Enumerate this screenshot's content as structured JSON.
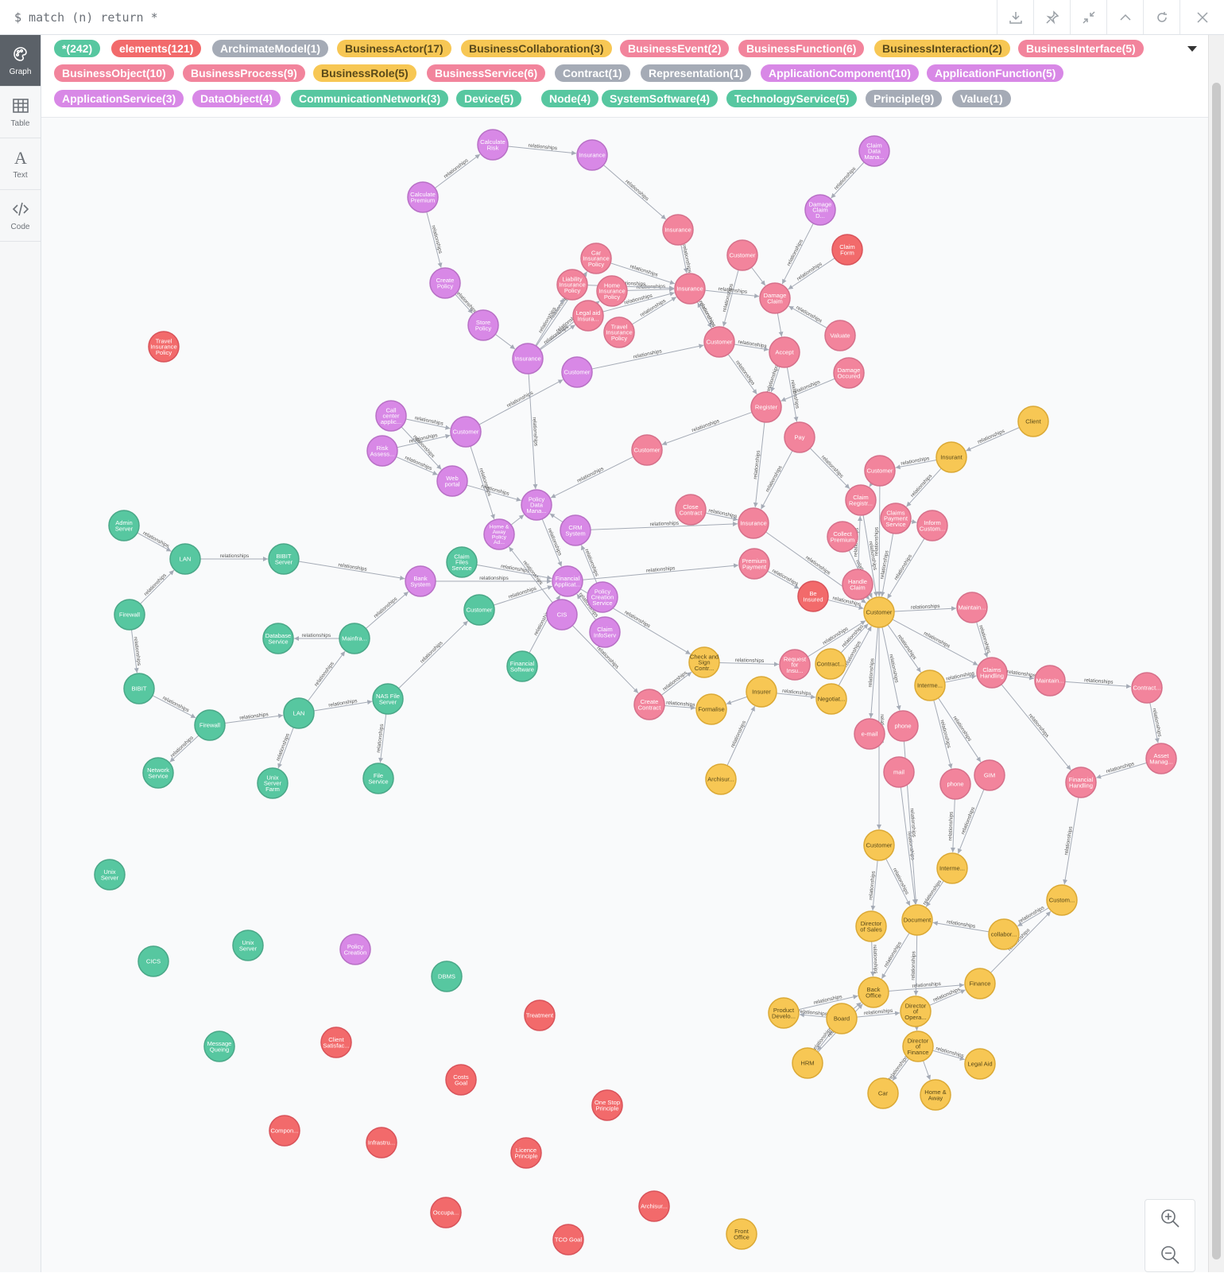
{
  "query": {
    "text": "$ match (n) return *"
  },
  "toolbar": [
    "download-icon",
    "pin-icon",
    "collapse-icon",
    "chevron-up-icon",
    "rerun-icon",
    "close-icon"
  ],
  "sidebar": [
    {
      "key": "graph",
      "label": "Graph",
      "active": true
    },
    {
      "key": "table",
      "label": "Table",
      "active": false
    },
    {
      "key": "text",
      "label": "Text",
      "active": false
    },
    {
      "key": "code",
      "label": "Code",
      "active": false
    }
  ],
  "colors": {
    "green": "#57c7a0",
    "red": "#f26a6b",
    "gray": "#a5abb6",
    "yellow": "#f7c754",
    "pink": "#f2849c",
    "purple": "#d888e6"
  },
  "labels": [
    {
      "text": "*(242)",
      "color": "green"
    },
    {
      "text": "elements(121)",
      "color": "red"
    },
    {
      "text": "ArchimateModel(1)",
      "color": "gray"
    },
    {
      "text": "BusinessActor(17)",
      "color": "yellow"
    },
    {
      "text": "BusinessCollaboration(3)",
      "color": "yellow"
    },
    {
      "text": "BusinessEvent(2)",
      "color": "pink"
    },
    {
      "text": "BusinessFunction(6)",
      "color": "pink"
    },
    {
      "text": "BusinessInteraction(2)",
      "color": "yellow"
    },
    {
      "text": "BusinessInterface(5)",
      "color": "pink"
    },
    {
      "text": "BusinessObject(10)",
      "color": "pink"
    },
    {
      "text": "BusinessProcess(9)",
      "color": "pink"
    },
    {
      "text": "BusinessRole(5)",
      "color": "yellow"
    },
    {
      "text": "BusinessService(6)",
      "color": "pink"
    },
    {
      "text": "Contract(1)",
      "color": "gray"
    },
    {
      "text": "Representation(1)",
      "color": "gray"
    },
    {
      "text": "ApplicationComponent(10)",
      "color": "purple"
    },
    {
      "text": "ApplicationFunction(5)",
      "color": "purple"
    },
    {
      "text": "ApplicationService(3)",
      "color": "purple"
    },
    {
      "text": "DataObject(4)",
      "color": "purple"
    },
    {
      "text": "CommunicationNetwork(3)",
      "color": "green"
    },
    {
      "text": "Device(5)",
      "color": "green"
    },
    {
      "text": "Node(4)",
      "color": "green"
    },
    {
      "text": "SystemSoftware(4)",
      "color": "green"
    },
    {
      "text": "TechnologyService(5)",
      "color": "green"
    },
    {
      "text": "Principle(9)",
      "color": "gray"
    },
    {
      "text": "Value(1)",
      "color": "gray"
    }
  ],
  "edge_label": "relationships",
  "nodes": [
    {
      "id": "calcRisk",
      "label": "Calculate Risk",
      "color": "purple"
    },
    {
      "id": "insTop",
      "label": "Insurance",
      "color": "purple"
    },
    {
      "id": "calcPrem",
      "label": "Calculate Premium",
      "color": "purple"
    },
    {
      "id": "claimDM1",
      "label": "Claim Data Mana...",
      "color": "purple"
    },
    {
      "id": "damageClaimD",
      "label": "Damage Claim D...",
      "color": "purple"
    },
    {
      "id": "insPink1",
      "label": "Insurance",
      "color": "pink"
    },
    {
      "id": "claimForm",
      "label": "Claim Form",
      "color": "red"
    },
    {
      "id": "custPink1",
      "label": "Customer",
      "color": "pink"
    },
    {
      "id": "createPolicy",
      "label": "Create Policy",
      "color": "purple"
    },
    {
      "id": "carIns",
      "label": "Car Insurance Policy",
      "color": "pink"
    },
    {
      "id": "liabIns",
      "label": "Liability Insurance Policy",
      "color": "pink"
    },
    {
      "id": "homeIns",
      "label": "Home Insurance Policy",
      "color": "pink"
    },
    {
      "id": "insPink2",
      "label": "Insurance",
      "color": "pink"
    },
    {
      "id": "damageClaim",
      "label": "Damage Claim",
      "color": "pink"
    },
    {
      "id": "legalAid",
      "label": "Legal aid Insura...",
      "color": "pink"
    },
    {
      "id": "storePolicy",
      "label": "Store Policy",
      "color": "purple"
    },
    {
      "id": "travelIns",
      "label": "Travel Insurance Policy",
      "color": "pink"
    },
    {
      "id": "custPink2",
      "label": "Customer",
      "color": "pink"
    },
    {
      "id": "accept",
      "label": "Accept",
      "color": "pink"
    },
    {
      "id": "valuate",
      "label": "Valuate",
      "color": "pink"
    },
    {
      "id": "travelInsRed",
      "label": "Travel Insurance Policy",
      "color": "red"
    },
    {
      "id": "insPurple",
      "label": "Insurance",
      "color": "purple"
    },
    {
      "id": "custPurple1",
      "label": "Customer",
      "color": "purple"
    },
    {
      "id": "damageOcc",
      "label": "Damage Occured",
      "color": "pink"
    },
    {
      "id": "register",
      "label": "Register",
      "color": "pink"
    },
    {
      "id": "callCenter",
      "label": "Call center applic...",
      "color": "purple"
    },
    {
      "id": "custPurple2",
      "label": "Customer",
      "color": "purple"
    },
    {
      "id": "client",
      "label": "Client",
      "color": "yellow"
    },
    {
      "id": "riskAssess",
      "label": "Risk Assess...",
      "color": "purple"
    },
    {
      "id": "pay",
      "label": "Pay",
      "color": "pink"
    },
    {
      "id": "custPink3",
      "label": "Customer",
      "color": "pink"
    },
    {
      "id": "insurant",
      "label": "Insurant",
      "color": "yellow"
    },
    {
      "id": "webPortal",
      "label": "Web portal",
      "color": "purple"
    },
    {
      "id": "custPink4",
      "label": "Customer",
      "color": "pink"
    },
    {
      "id": "policyDM",
      "label": "Policy Data Mana...",
      "color": "purple"
    },
    {
      "id": "closeContract",
      "label": "Close Contract",
      "color": "pink"
    },
    {
      "id": "claimReg",
      "label": "Claim Registr...",
      "color": "pink"
    },
    {
      "id": "claimsPay",
      "label": "Claims Payment Service",
      "color": "pink"
    },
    {
      "id": "adminServer",
      "label": "Admin Server",
      "color": "green"
    },
    {
      "id": "homeAway",
      "label": "Home & Away Policy Ad...",
      "color": "purple"
    },
    {
      "id": "crm",
      "label": "CRM System",
      "color": "purple"
    },
    {
      "id": "insPink3",
      "label": "Insurance",
      "color": "pink"
    },
    {
      "id": "collectPrem",
      "label": "Collect Premium",
      "color": "pink"
    },
    {
      "id": "informCust",
      "label": "Inform Custom...",
      "color": "pink"
    },
    {
      "id": "lan1",
      "label": "LAN",
      "color": "green"
    },
    {
      "id": "bibitServer",
      "label": "BIBIT Server",
      "color": "green"
    },
    {
      "id": "claimFilesSvc",
      "label": "Claim Files Service",
      "color": "green"
    },
    {
      "id": "bankSystem",
      "label": "Bank System",
      "color": "purple"
    },
    {
      "id": "finApp",
      "label": "Financial Applicat...",
      "color": "purple"
    },
    {
      "id": "premPay",
      "label": "Premium Payment",
      "color": "pink"
    },
    {
      "id": "handleClaim",
      "label": "Handle Claim",
      "color": "pink"
    },
    {
      "id": "policyCreation",
      "label": "Policy Creation Service",
      "color": "purple"
    },
    {
      "id": "beInsured",
      "label": "Be Insured",
      "color": "red"
    },
    {
      "id": "custYellow",
      "label": "Customer",
      "color": "yellow"
    },
    {
      "id": "maintain1",
      "label": "Maintain...",
      "color": "pink"
    },
    {
      "id": "firewall1",
      "label": "Firewall",
      "color": "green"
    },
    {
      "id": "custGreen",
      "label": "Customer",
      "color": "green"
    },
    {
      "id": "cis",
      "label": "CIS",
      "color": "purple"
    },
    {
      "id": "dbService",
      "label": "Database Service",
      "color": "green"
    },
    {
      "id": "mainframe",
      "label": "Mainfra...",
      "color": "green"
    },
    {
      "id": "claimInfo",
      "label": "Claim InfoServ",
      "color": "purple"
    },
    {
      "id": "checkSign",
      "label": "Check and Sign Contr...",
      "color": "yellow"
    },
    {
      "id": "reqIns",
      "label": "Request for Insu...",
      "color": "pink"
    },
    {
      "id": "contractY",
      "label": "Contract...",
      "color": "yellow"
    },
    {
      "id": "claimsHandling",
      "label": "Claims Handling",
      "color": "pink"
    },
    {
      "id": "finSoftware",
      "label": "Financial Software",
      "color": "green"
    },
    {
      "id": "intermediary1",
      "label": "Interme...",
      "color": "yellow"
    },
    {
      "id": "maintain2",
      "label": "Maintain...",
      "color": "pink"
    },
    {
      "id": "contractPink",
      "label": "Contract...",
      "color": "pink"
    },
    {
      "id": "bibit",
      "label": "BIBIT",
      "color": "green"
    },
    {
      "id": "insurer",
      "label": "Insurer",
      "color": "yellow"
    },
    {
      "id": "negotiate",
      "label": "Negotiat...",
      "color": "yellow"
    },
    {
      "id": "nasServer",
      "label": "NAS File Server",
      "color": "green"
    },
    {
      "id": "createContract",
      "label": "Create Contract",
      "color": "pink"
    },
    {
      "id": "formalise",
      "label": "Formalise",
      "color": "yellow"
    },
    {
      "id": "lan2",
      "label": "LAN",
      "color": "green"
    },
    {
      "id": "firewall2",
      "label": "Firewall",
      "color": "green"
    },
    {
      "id": "email",
      "label": "e-mail",
      "color": "pink"
    },
    {
      "id": "phone1",
      "label": "phone",
      "color": "pink"
    },
    {
      "id": "assetManag",
      "label": "Asset Manag...",
      "color": "pink"
    },
    {
      "id": "networkSvc",
      "label": "Network Service",
      "color": "green"
    },
    {
      "id": "mail",
      "label": "mail",
      "color": "pink"
    },
    {
      "id": "gim",
      "label": "GIM",
      "color": "pink"
    },
    {
      "id": "fileService",
      "label": "File Service",
      "color": "green"
    },
    {
      "id": "unixFarm",
      "label": "Unix Server Farm",
      "color": "green"
    },
    {
      "id": "archisur1",
      "label": "Archisur...",
      "color": "yellow"
    },
    {
      "id": "phone2",
      "label": "phone",
      "color": "pink"
    },
    {
      "id": "finHandling",
      "label": "Financial Handling",
      "color": "pink"
    },
    {
      "id": "custYellow2",
      "label": "Customer",
      "color": "yellow"
    },
    {
      "id": "intermediary2",
      "label": "Interme...",
      "color": "yellow"
    },
    {
      "id": "unixServer1",
      "label": "Unix Server",
      "color": "green"
    },
    {
      "id": "custom",
      "label": "Custom...",
      "color": "yellow"
    },
    {
      "id": "dirSales",
      "label": "Director of Sales",
      "color": "yellow"
    },
    {
      "id": "document",
      "label": "Document",
      "color": "yellow"
    },
    {
      "id": "collab",
      "label": "collabor...",
      "color": "yellow"
    },
    {
      "id": "unixServer2",
      "label": "Unix Server",
      "color": "green"
    },
    {
      "id": "policyCreation2",
      "label": "Policy Creation",
      "color": "purple"
    },
    {
      "id": "cics",
      "label": "CICS",
      "color": "green"
    },
    {
      "id": "dbms",
      "label": "DBMS",
      "color": "green"
    },
    {
      "id": "finance",
      "label": "Finance",
      "color": "yellow"
    },
    {
      "id": "backOffice",
      "label": "Back Office",
      "color": "yellow"
    },
    {
      "id": "productDev",
      "label": "Product Develo...",
      "color": "yellow"
    },
    {
      "id": "dirOps",
      "label": "Director of Opera...",
      "color": "yellow"
    },
    {
      "id": "board",
      "label": "Board",
      "color": "yellow"
    },
    {
      "id": "treatment",
      "label": "Treatment",
      "color": "red"
    },
    {
      "id": "clientSat",
      "label": "Client Satisfac...",
      "color": "red"
    },
    {
      "id": "msgQueue",
      "label": "Message Queing",
      "color": "green"
    },
    {
      "id": "dirFinance",
      "label": "Director of Finance",
      "color": "yellow"
    },
    {
      "id": "legalAidY",
      "label": "Legal Aid",
      "color": "yellow"
    },
    {
      "id": "hrm",
      "label": "HRM",
      "color": "yellow"
    },
    {
      "id": "costsGoal",
      "label": "Costs Goal",
      "color": "red"
    },
    {
      "id": "car",
      "label": "Car",
      "color": "yellow"
    },
    {
      "id": "homeAwayY",
      "label": "Home & Away",
      "color": "yellow"
    },
    {
      "id": "oneStop",
      "label": "One Stop Principle",
      "color": "red"
    },
    {
      "id": "compon",
      "label": "Compon...",
      "color": "red"
    },
    {
      "id": "infra",
      "label": "Infrastru...",
      "color": "red"
    },
    {
      "id": "licence",
      "label": "Licence Principle",
      "color": "red"
    },
    {
      "id": "archisur2",
      "label": "Archisur...",
      "color": "red"
    },
    {
      "id": "occupa",
      "label": "Occupa...",
      "color": "red"
    },
    {
      "id": "tcoGoal",
      "label": "TCO Goal",
      "color": "red"
    },
    {
      "id": "frontOffice",
      "label": "Front Office",
      "color": "yellow"
    }
  ]
}
